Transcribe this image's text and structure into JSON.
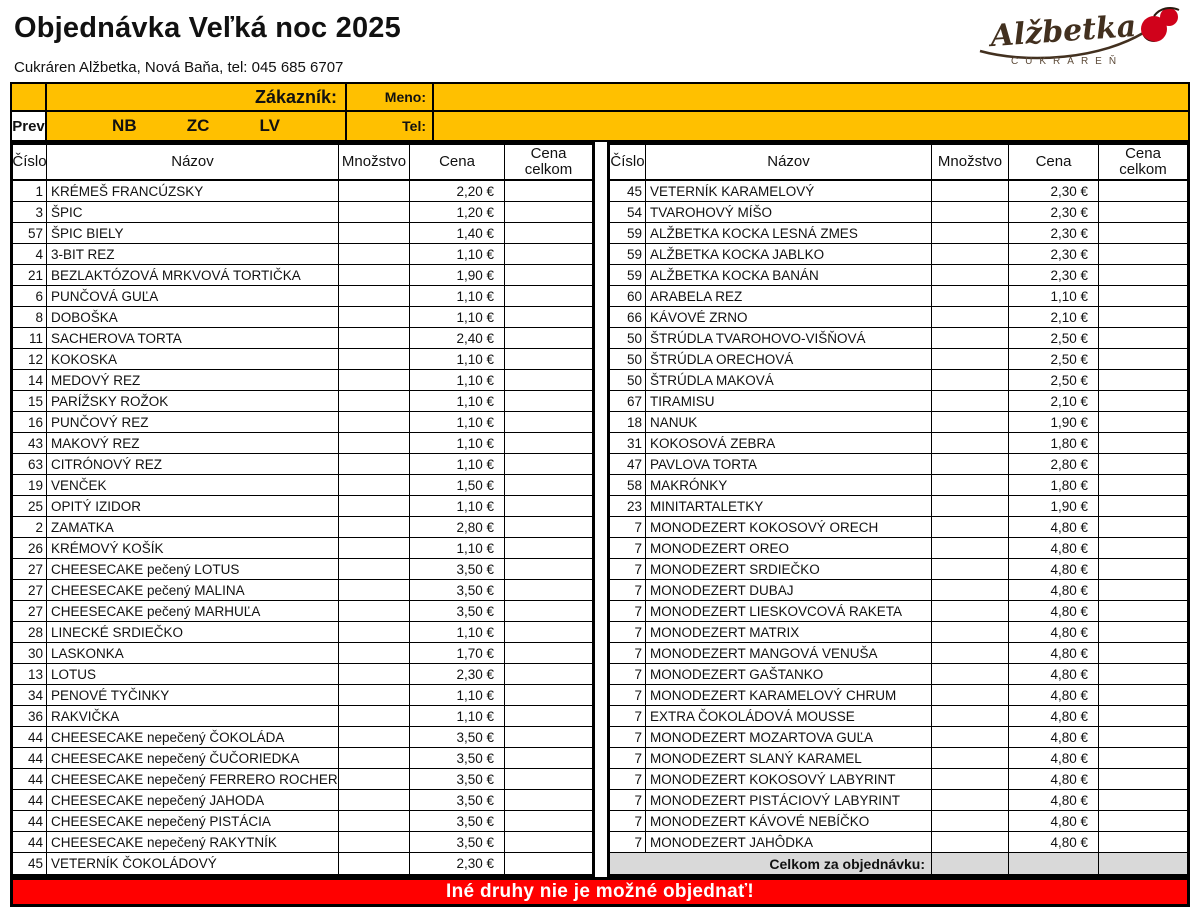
{
  "page": {
    "title": "Objednávka Veľká noc 2025",
    "subtitle": "Cukráren Alžbetka, Nová Baňa, tel: 045 685 6707"
  },
  "logo": {
    "name": "Alžbetka",
    "tagline": "CUKRÁREŇ"
  },
  "customer_box": {
    "zakaznik_label": "Zákazník:",
    "meno_label": "Meno:",
    "meno_value": "",
    "tel_label": "Tel:",
    "tel_value": "",
    "prev_label": "Prev",
    "branches": [
      "NB",
      "ZC",
      "LV"
    ]
  },
  "table": {
    "columns": [
      "Číslo",
      "Názov",
      "Množstvo",
      "Cena",
      "Cena celkom"
    ],
    "left_rows": [
      [
        "1",
        "KRÉMEŠ FRANCÚZSKY",
        "2,20 €"
      ],
      [
        "3",
        "ŠPIC",
        "1,20 €"
      ],
      [
        "57",
        "ŠPIC BIELY",
        "1,40 €"
      ],
      [
        "4",
        "3-BIT REZ",
        "1,10 €"
      ],
      [
        "21",
        "BEZLAKTÓZOVÁ MRKVOVÁ TORTIČKA",
        "1,90 €"
      ],
      [
        "6",
        "PUNČOVÁ GUĽA",
        "1,10 €"
      ],
      [
        "8",
        "DOBOŠKA",
        "1,10 €"
      ],
      [
        "11",
        "SACHEROVA TORTA",
        "2,40 €"
      ],
      [
        "12",
        "KOKOSKA",
        "1,10 €"
      ],
      [
        "14",
        "MEDOVÝ REZ",
        "1,10 €"
      ],
      [
        "15",
        "PARÍŽSKY ROŽOK",
        "1,10 €"
      ],
      [
        "16",
        "PUNČOVÝ REZ",
        "1,10 €"
      ],
      [
        "43",
        "MAKOVÝ REZ",
        "1,10 €"
      ],
      [
        "63",
        "CITRÓNOVÝ REZ",
        "1,10 €"
      ],
      [
        "19",
        "VENČEK",
        "1,50 €"
      ],
      [
        "25",
        "OPITÝ IZIDOR",
        "1,10 €"
      ],
      [
        "2",
        "ZAMATKA",
        "2,80 €"
      ],
      [
        "26",
        "KRÉMOVÝ KOŠÍK",
        "1,10 €"
      ],
      [
        "27",
        "CHEESECAKE pečený LOTUS",
        "3,50 €"
      ],
      [
        "27",
        "CHEESECAKE pečený MALINA",
        "3,50 €"
      ],
      [
        "27",
        "CHEESECAKE pečený MARHUĽA",
        "3,50 €"
      ],
      [
        "28",
        "LINECKÉ SRDIEČKO",
        "1,10 €"
      ],
      [
        "30",
        "LASKONKA",
        "1,70 €"
      ],
      [
        "13",
        "LOTUS",
        "2,30 €"
      ],
      [
        "34",
        "PENOVÉ TYČINKY",
        "1,10 €"
      ],
      [
        "36",
        "RAKVIČKA",
        "1,10 €"
      ],
      [
        "44",
        "CHEESECAKE nepečený ČOKOLÁDA",
        "3,50 €"
      ],
      [
        "44",
        "CHEESECAKE nepečený ČUČORIEDKA",
        "3,50 €"
      ],
      [
        "44",
        "CHEESECAKE nepečený FERRERO ROCHER",
        "3,50 €"
      ],
      [
        "44",
        "CHEESECAKE nepečený JAHODA",
        "3,50 €"
      ],
      [
        "44",
        "CHEESECAKE nepečený PISTÁCIA",
        "3,50 €"
      ],
      [
        "44",
        "CHEESECAKE nepečený RAKYTNÍK",
        "3,50 €"
      ],
      [
        "45",
        "VETERNÍK ČOKOLÁDOVÝ",
        "2,30 €"
      ]
    ],
    "right_rows": [
      [
        "45",
        "VETERNÍK KARAMELOVÝ",
        "2,30 €"
      ],
      [
        "54",
        "TVAROHOVÝ MÍŠO",
        "2,30 €"
      ],
      [
        "59",
        "ALŽBETKA KOCKA LESNÁ ZMES",
        "2,30 €"
      ],
      [
        "59",
        "ALŽBETKA KOCKA JABLKO",
        "2,30 €"
      ],
      [
        "59",
        "ALŽBETKA KOCKA BANÁN",
        "2,30 €"
      ],
      [
        "60",
        "ARABELA REZ",
        "1,10 €"
      ],
      [
        "66",
        "KÁVOVÉ ZRNO",
        "2,10 €"
      ],
      [
        "50",
        "ŠTRÚDLA TVAROHOVO-VIŠŇOVÁ",
        "2,50 €"
      ],
      [
        "50",
        "ŠTRÚDLA ORECHOVÁ",
        "2,50 €"
      ],
      [
        "50",
        "ŠTRÚDLA MAKOVÁ",
        "2,50 €"
      ],
      [
        "67",
        "TIRAMISU",
        "2,10 €"
      ],
      [
        "18",
        "NANUK",
        "1,90 €"
      ],
      [
        "31",
        "KOKOSOVÁ ZEBRA",
        "1,80 €"
      ],
      [
        "47",
        "PAVLOVA TORTA",
        "2,80 €"
      ],
      [
        "58",
        "MAKRÓNKY",
        "1,80 €"
      ],
      [
        "23",
        "MINITARTALETKY",
        "1,90 €"
      ],
      [
        "7",
        "MONODEZERT KOKOSOVÝ ORECH",
        "4,80 €"
      ],
      [
        "7",
        "MONODEZERT OREO",
        "4,80 €"
      ],
      [
        "7",
        "MONODEZERT SRDIEČKO",
        "4,80 €"
      ],
      [
        "7",
        "MONODEZERT DUBAJ",
        "4,80 €"
      ],
      [
        "7",
        "MONODEZERT LIESKOVCOVÁ RAKETA",
        "4,80 €"
      ],
      [
        "7",
        "MONODEZERT MATRIX",
        "4,80 €"
      ],
      [
        "7",
        "MONODEZERT MANGOVÁ VENUŠA",
        "4,80 €"
      ],
      [
        "7",
        "MONODEZERT GAŠTANKO",
        "4,80 €"
      ],
      [
        "7",
        "MONODEZERT KARAMELOVÝ CHRUM",
        "4,80 €"
      ],
      [
        "7",
        "EXTRA ČOKOLÁDOVÁ MOUSSE",
        "4,80 €"
      ],
      [
        "7",
        "MONODEZERT MOZARTOVA GUĽA",
        "4,80 €"
      ],
      [
        "7",
        "MONODEZERT SLANÝ KARAMEL",
        "4,80 €"
      ],
      [
        "7",
        "MONODEZERT KOKOSOVÝ LABYRINT",
        "4,80 €"
      ],
      [
        "7",
        "MONODEZERT PISTÁCIOVÝ LABYRINT",
        "4,80 €"
      ],
      [
        "7",
        "MONODEZERT KÁVOVÉ NEBÍČKO",
        "4,80 €"
      ],
      [
        "7",
        "MONODEZERT JAHÔDKA",
        "4,80 €"
      ]
    ],
    "total_label": "Celkom za objednávku:"
  },
  "banner": {
    "text": "Iné druhy nie je možné objednať!"
  },
  "colors": {
    "accent_yellow": "#FFC000",
    "banner_red": "#FF0000",
    "total_gray": "#D9D9D9",
    "logo_brown": "#42301f",
    "logo_red": "#d0021b"
  }
}
